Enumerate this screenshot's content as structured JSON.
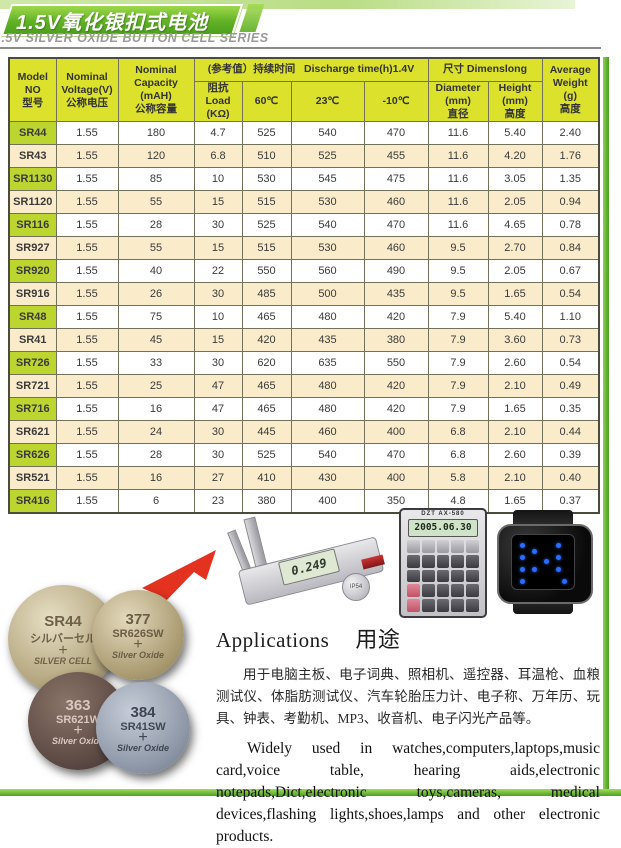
{
  "header": {
    "title_cn": "1.5V氧化银扣式电池",
    "subtitle_en": "1.5V SILVER OXIDE BUTTON CELL SERIES"
  },
  "colors": {
    "banner_green": "#61b226",
    "table_header_yellow": "#dce22b",
    "model_col_green": "#bdd62f",
    "alt_row_cream": "#faeccb",
    "frame_green": "#46a01e",
    "arrow_red": "#e33220"
  },
  "table": {
    "headers": {
      "model": "Model\nNO\n型号",
      "voltage": "Nominal\nVoltage(V)\n公称电压",
      "capacity": "Nominal\nCapacity\n(mAH)\n公称容量",
      "discharge_cn": "(参考值）持续时间",
      "discharge_en": "Discharge time(h)1.4V",
      "load": "阻抗\nLoad\n(KΩ)",
      "t60": "60℃",
      "t23": "23℃",
      "t_10": "-10℃",
      "dims_group": "尺寸 Dimenslong",
      "diameter": "Diameter\n(mm)\n直径",
      "height": "Height\n(mm)\n高度",
      "weight": "Average\nWeight\n(g)\n高度"
    },
    "rows": [
      [
        "SR44",
        "1.55",
        "180",
        "4.7",
        "525",
        "540",
        "470",
        "11.6",
        "5.40",
        "2.40"
      ],
      [
        "SR43",
        "1.55",
        "120",
        "6.8",
        "510",
        "525",
        "455",
        "11.6",
        "4.20",
        "1.76"
      ],
      [
        "SR1130",
        "1.55",
        "85",
        "10",
        "530",
        "545",
        "475",
        "11.6",
        "3.05",
        "1.35"
      ],
      [
        "SR1120",
        "1.55",
        "55",
        "15",
        "515",
        "530",
        "460",
        "11.6",
        "2.05",
        "0.94"
      ],
      [
        "SR116",
        "1.55",
        "28",
        "30",
        "525",
        "540",
        "470",
        "11.6",
        "4.65",
        "0.78"
      ],
      [
        "SR927",
        "1.55",
        "55",
        "15",
        "515",
        "530",
        "460",
        "9.5",
        "2.70",
        "0.84"
      ],
      [
        "SR920",
        "1.55",
        "40",
        "22",
        "550",
        "560",
        "490",
        "9.5",
        "2.05",
        "0.67"
      ],
      [
        "SR916",
        "1.55",
        "26",
        "30",
        "485",
        "500",
        "435",
        "9.5",
        "1.65",
        "0.54"
      ],
      [
        "SR48",
        "1.55",
        "75",
        "10",
        "465",
        "480",
        "420",
        "7.9",
        "5.40",
        "1.10"
      ],
      [
        "SR41",
        "1.55",
        "45",
        "15",
        "420",
        "435",
        "380",
        "7.9",
        "3.60",
        "0.73"
      ],
      [
        "SR726",
        "1.55",
        "33",
        "30",
        "620",
        "635",
        "550",
        "7.9",
        "2.60",
        "0.54"
      ],
      [
        "SR721",
        "1.55",
        "25",
        "47",
        "465",
        "480",
        "420",
        "7.9",
        "2.10",
        "0.49"
      ],
      [
        "SR716",
        "1.55",
        "16",
        "47",
        "465",
        "480",
        "420",
        "7.9",
        "1.65",
        "0.35"
      ],
      [
        "SR621",
        "1.55",
        "24",
        "30",
        "445",
        "460",
        "400",
        "6.8",
        "2.10",
        "0.44"
      ],
      [
        "SR626",
        "1.55",
        "28",
        "30",
        "525",
        "540",
        "470",
        "6.8",
        "2.60",
        "0.39"
      ],
      [
        "SR521",
        "1.55",
        "16",
        "27",
        "410",
        "430",
        "400",
        "5.8",
        "2.10",
        "0.40"
      ],
      [
        "SR416",
        "1.55",
        "6",
        "23",
        "380",
        "400",
        "350",
        "4.8",
        "1.65",
        "0.37"
      ]
    ]
  },
  "devices": {
    "caliper_lcd": "0.249",
    "caliper_badge": "IP54",
    "calculator_brand": "DZT  AX-580",
    "calculator_lcd": "2005.06.30"
  },
  "batteries": [
    {
      "l1": "SR44",
      "l2": "シルバーセル",
      "l3": "SILVER CELL"
    },
    {
      "l1": "377",
      "l2": "SR626SW",
      "l3": "Silver Oxide"
    },
    {
      "l1": "363",
      "l2": "SR621W",
      "l3": "Silver Oxide"
    },
    {
      "l1": "384",
      "l2": "SR41SW",
      "l3": "Silver Oxide"
    }
  ],
  "applications": {
    "title_en": "Applications",
    "title_cn": "用途",
    "para_cn": "用于电脑主板、电子词典、照相机、遥控器、耳温枪、血粮测试仪、体脂肪测试仪、汽车轮胎压力计、电子称、万年历、玩具、钟表、考勤机、MP3、收音机、电子闪光产品等。",
    "para_en": "Widely used in watches,computers,laptops,music card,voice table, hearing aids,electronic notepads,Dict,electronic toys,cameras, medical devices,flashing lights,shoes,lamps and other electronic products."
  }
}
